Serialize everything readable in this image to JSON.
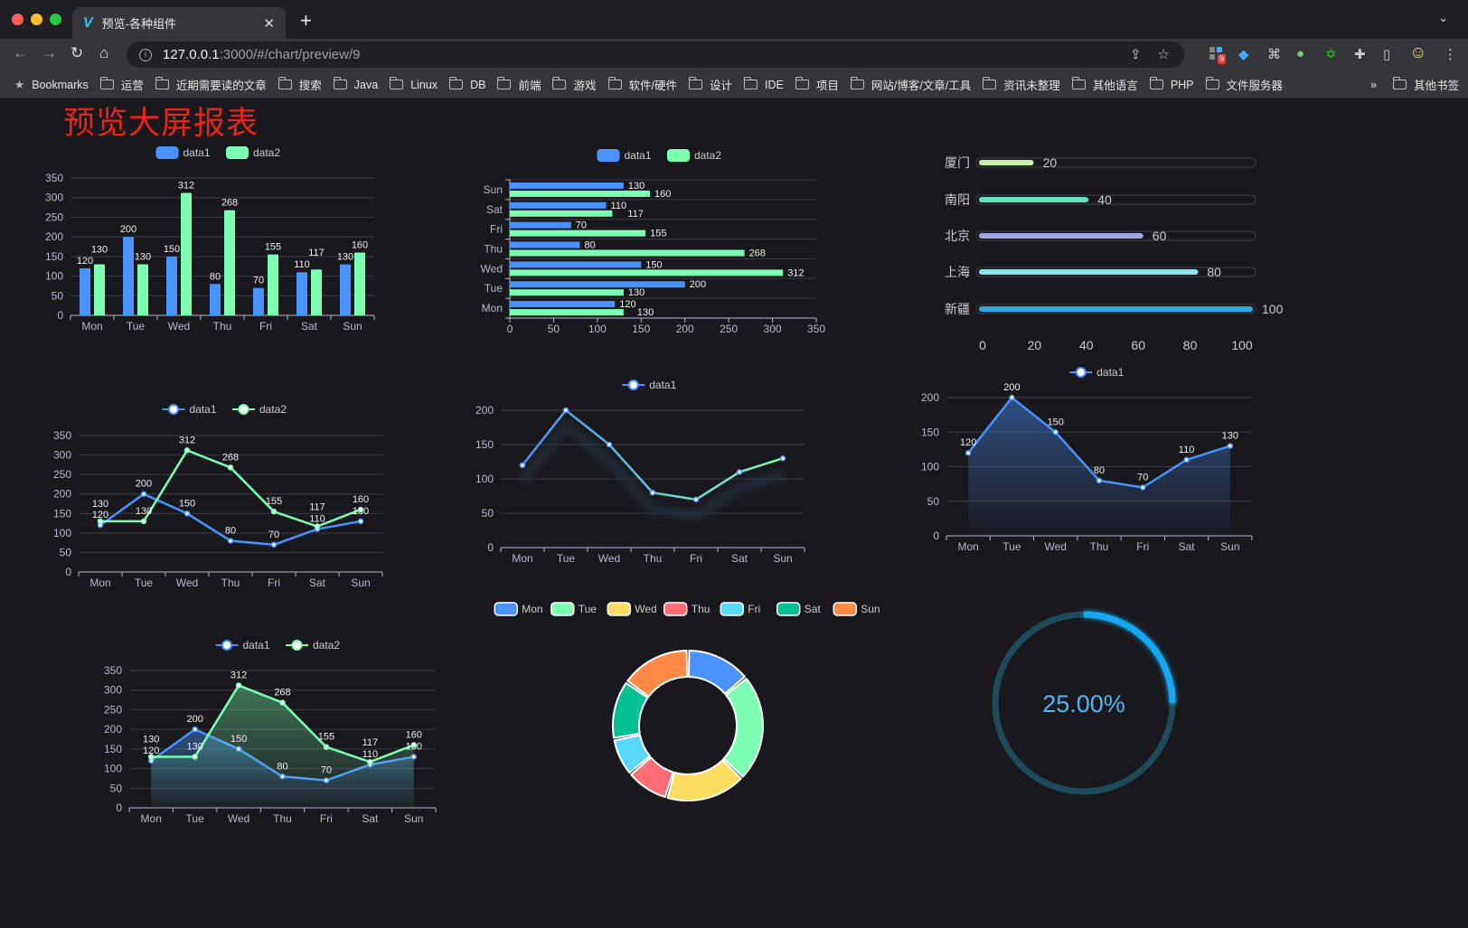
{
  "browser": {
    "tab_title": "预览-各种组件",
    "url_host": "127.0.0.1",
    "url_rest": ":3000/#/chart/preview/9",
    "extension_badge": "9",
    "bookmarks_label": "Bookmarks",
    "bookmarks": [
      "运营",
      "近期需要读的文章",
      "搜索",
      "Java",
      "Linux",
      "DB",
      "前端",
      "游戏",
      "软件/硬件",
      "设计",
      "IDE",
      "项目",
      "网站/博客/文章/工具",
      "资讯未整理",
      "其他语言",
      "PHP",
      "文件服务器"
    ],
    "overflow": "»",
    "other_bookmarks": "其他书签"
  },
  "page_title": "预览大屏报表",
  "chart_data": [
    {
      "type": "bar",
      "categories": [
        "Mon",
        "Tue",
        "Wed",
        "Thu",
        "Fri",
        "Sat",
        "Sun"
      ],
      "series": [
        {
          "name": "data1",
          "values": [
            120,
            200,
            150,
            80,
            70,
            110,
            130
          ],
          "color": "#4992ff"
        },
        {
          "name": "data2",
          "values": [
            130,
            130,
            312,
            268,
            155,
            117,
            160
          ],
          "color": "#7cffb2"
        }
      ],
      "ylim": [
        0,
        350
      ],
      "ystep": 50,
      "grid": true,
      "legend": "top-center",
      "data_labels": true
    },
    {
      "type": "bar",
      "orientation": "horizontal",
      "categories": [
        "Mon",
        "Tue",
        "Wed",
        "Thu",
        "Fri",
        "Sat",
        "Sun"
      ],
      "series": [
        {
          "name": "data1",
          "values": [
            120,
            200,
            150,
            80,
            70,
            110,
            130
          ],
          "color": "#4992ff"
        },
        {
          "name": "data2",
          "values": [
            130,
            130,
            312,
            268,
            155,
            117,
            160
          ],
          "color": "#7cffb2"
        }
      ],
      "xlim": [
        0,
        350
      ],
      "xstep": 50,
      "grid": true,
      "legend": "top-center",
      "data_labels": true
    },
    {
      "type": "bar",
      "orientation": "horizontal",
      "style": "progress",
      "categories": [
        "厦门",
        "南阳",
        "北京",
        "上海",
        "新疆"
      ],
      "values": [
        20,
        40,
        60,
        80,
        100
      ],
      "colors": [
        "#c8f0a4",
        "#63e2b7",
        "#9fa6e8",
        "#8fe3ea",
        "#2ea8e0"
      ],
      "xlim": [
        0,
        100
      ],
      "xticks": [
        0,
        20,
        40,
        60,
        80,
        100
      ]
    },
    {
      "type": "line",
      "categories": [
        "Mon",
        "Tue",
        "Wed",
        "Thu",
        "Fri",
        "Sat",
        "Sun"
      ],
      "series": [
        {
          "name": "data1",
          "values": [
            120,
            200,
            150,
            80,
            70,
            110,
            130
          ],
          "color": "#4992ff"
        },
        {
          "name": "data2",
          "values": [
            130,
            130,
            312,
            268,
            155,
            117,
            160
          ],
          "color": "#7cffb2"
        }
      ],
      "ylim": [
        0,
        350
      ],
      "ystep": 50,
      "grid": true,
      "legend": "top-center",
      "data_labels": true
    },
    {
      "type": "line",
      "categories": [
        "Mon",
        "Tue",
        "Wed",
        "Thu",
        "Fri",
        "Sat",
        "Sun"
      ],
      "series": [
        {
          "name": "data1",
          "values": [
            120,
            200,
            150,
            80,
            70,
            110,
            130
          ],
          "color": "#4992ff",
          "gradient_to": "#7cffb2"
        }
      ],
      "ylim": [
        0,
        200
      ],
      "ystep": 50,
      "grid": true,
      "legend": "top-center",
      "data_labels": false
    },
    {
      "type": "area",
      "categories": [
        "Mon",
        "Tue",
        "Wed",
        "Thu",
        "Fri",
        "Sat",
        "Sun"
      ],
      "series": [
        {
          "name": "data1",
          "values": [
            120,
            200,
            150,
            80,
            70,
            110,
            130
          ],
          "color": "#4992ff"
        }
      ],
      "ylim": [
        0,
        200
      ],
      "ystep": 50,
      "grid": true,
      "legend": "top-center",
      "data_labels": true
    },
    {
      "type": "area",
      "categories": [
        "Mon",
        "Tue",
        "Wed",
        "Thu",
        "Fri",
        "Sat",
        "Sun"
      ],
      "series": [
        {
          "name": "data1",
          "values": [
            120,
            200,
            150,
            80,
            70,
            110,
            130
          ],
          "color": "#4992ff"
        },
        {
          "name": "data2",
          "values": [
            130,
            130,
            312,
            268,
            155,
            117,
            160
          ],
          "color": "#7cffb2"
        }
      ],
      "ylim": [
        0,
        350
      ],
      "ystep": 50,
      "grid": true,
      "legend": "top-center",
      "data_labels": true
    },
    {
      "type": "pie",
      "style": "donut",
      "categories": [
        "Mon",
        "Tue",
        "Wed",
        "Thu",
        "Fri",
        "Sat",
        "Sun"
      ],
      "values": [
        120,
        200,
        150,
        80,
        70,
        110,
        130
      ],
      "colors": [
        "#4992ff",
        "#7cffb2",
        "#fddd60",
        "#ff6e76",
        "#58d9f9",
        "#05c091",
        "#ff8a45"
      ],
      "legend": "top-center"
    },
    {
      "type": "gauge",
      "value": 25,
      "label": "25.00%",
      "color": "#18a8f0",
      "track_color": "#1f4a5a"
    }
  ]
}
